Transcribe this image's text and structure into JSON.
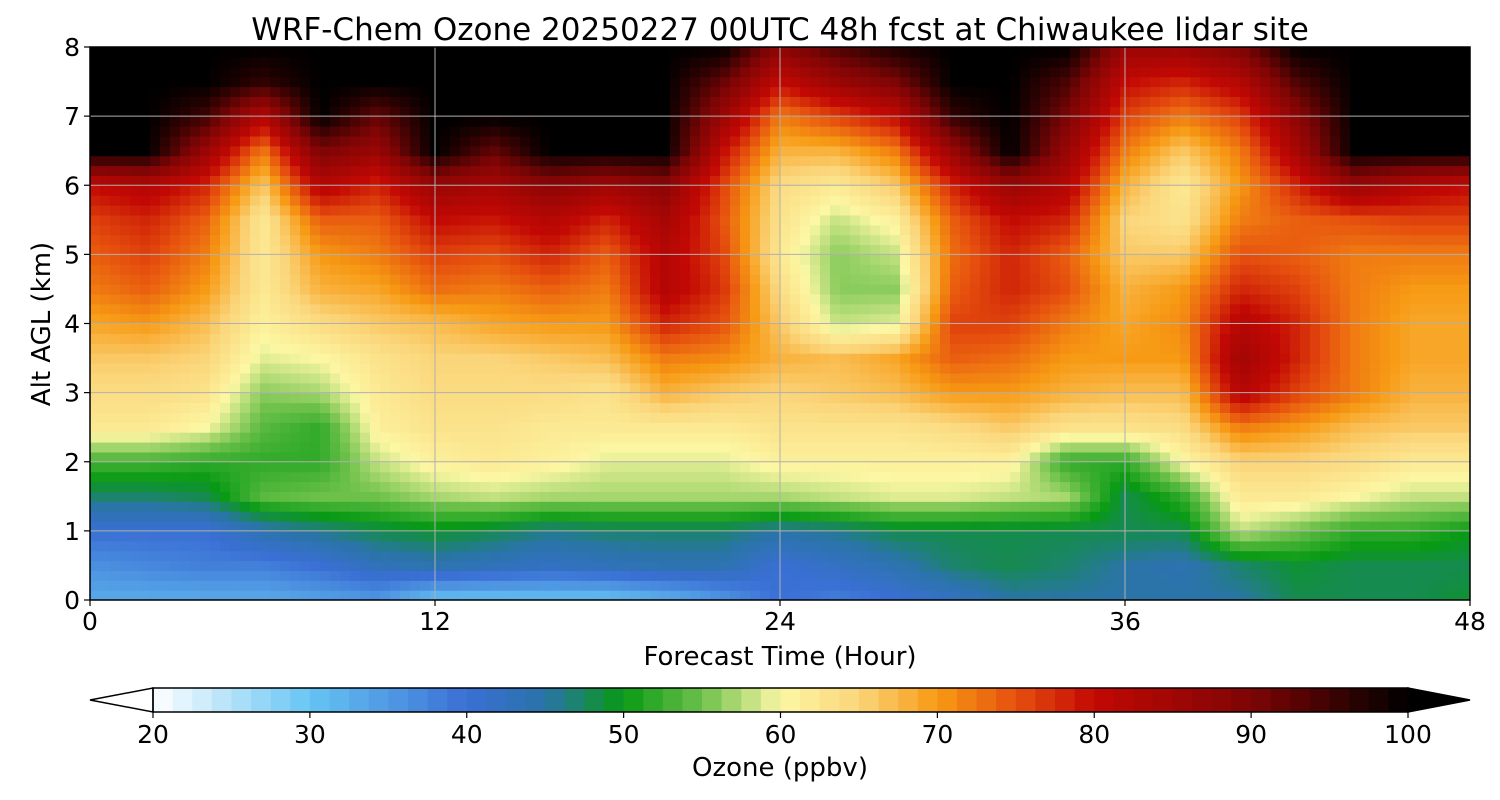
{
  "chart_data": {
    "type": "heatmap",
    "title": "WRF-Chem Ozone  20250227 00UTC 48h fcst at Chiwaukee lidar site",
    "xlabel": "Forecast Time (Hour)",
    "ylabel": "Alt AGL (km)",
    "xlim": [
      0,
      48
    ],
    "ylim": [
      0,
      8
    ],
    "xticks": [
      "0",
      "12",
      "24",
      "36",
      "48"
    ],
    "yticks": [
      "0",
      "1",
      "2",
      "3",
      "4",
      "5",
      "6",
      "7",
      "8"
    ],
    "grid": true,
    "x": [
      0,
      2,
      4,
      6,
      8,
      10,
      12,
      14,
      16,
      18,
      20,
      22,
      24,
      26,
      28,
      30,
      32,
      34,
      36,
      38,
      40,
      42,
      44,
      46,
      48
    ],
    "y": [
      0,
      0.5,
      1,
      1.5,
      2,
      2.5,
      3,
      3.5,
      4,
      4.5,
      5,
      5.5,
      6,
      6.5,
      7,
      7.5,
      8
    ],
    "z": [
      [
        33,
        33,
        33,
        33,
        34,
        35,
        30,
        30,
        30,
        30,
        32,
        35,
        40,
        38,
        40,
        42,
        45,
        45,
        45,
        45,
        45,
        48,
        48,
        48,
        49
      ],
      [
        36,
        37,
        38,
        38,
        40,
        43,
        44,
        43,
        42,
        43,
        44,
        44,
        40,
        42,
        44,
        47,
        48,
        47,
        45,
        44,
        47,
        49,
        48,
        48,
        48
      ],
      [
        40,
        40,
        40,
        44,
        46,
        48,
        49,
        48,
        46,
        47,
        47,
        47,
        45,
        46,
        48,
        48,
        48,
        48,
        48,
        48,
        58,
        55,
        52,
        52,
        50
      ],
      [
        47,
        47,
        48,
        54,
        55,
        55,
        57,
        58,
        57,
        57,
        57,
        57,
        57,
        58,
        59,
        59,
        58,
        57,
        48,
        52,
        62,
        62,
        60,
        58,
        58
      ],
      [
        53,
        53,
        52,
        52,
        52,
        58,
        61,
        62,
        61,
        59,
        59,
        59,
        61,
        61,
        61,
        61,
        61,
        52,
        52,
        60,
        65,
        65,
        64,
        62,
        62
      ],
      [
        62,
        62,
        60,
        54,
        52,
        61,
        63,
        63,
        62,
        62,
        62,
        62,
        63,
        63,
        63,
        64,
        66,
        63,
        63,
        64,
        72,
        70,
        67,
        66,
        66
      ],
      [
        64,
        64,
        63,
        56,
        57,
        62,
        64,
        64,
        64,
        63,
        68,
        66,
        65,
        66,
        67,
        70,
        70,
        68,
        67,
        67,
        82,
        76,
        72,
        68,
        68
      ],
      [
        66,
        66,
        65,
        59,
        60,
        63,
        65,
        65,
        66,
        67,
        72,
        71,
        68,
        67,
        69,
        74,
        73,
        70,
        70,
        70,
        85,
        78,
        72,
        69,
        69
      ],
      [
        69,
        70,
        67,
        61,
        64,
        66,
        67,
        69,
        70,
        70,
        78,
        75,
        66,
        58,
        59,
        76,
        76,
        72,
        69,
        71,
        82,
        78,
        72,
        69,
        69
      ],
      [
        72,
        74,
        70,
        62,
        68,
        69,
        73,
        72,
        74,
        72,
        82,
        77,
        64,
        56,
        56,
        74,
        78,
        75,
        68,
        70,
        78,
        76,
        72,
        70,
        70
      ],
      [
        74,
        76,
        72,
        62,
        70,
        72,
        76,
        75,
        78,
        74,
        82,
        76,
        62,
        56,
        58,
        73,
        78,
        74,
        66,
        66,
        75,
        74,
        72,
        72,
        72
      ],
      [
        76,
        78,
        74,
        62,
        74,
        74,
        80,
        79,
        82,
        78,
        84,
        75,
        63,
        58,
        61,
        74,
        80,
        78,
        65,
        63,
        72,
        74,
        75,
        76,
        76
      ],
      [
        80,
        82,
        78,
        66,
        82,
        78,
        86,
        84,
        88,
        85,
        88,
        76,
        64,
        62,
        66,
        78,
        86,
        82,
        68,
        62,
        70,
        78,
        86,
        82,
        80
      ],
      [
        100,
        100,
        86,
        72,
        90,
        86,
        100,
        92,
        100,
        100,
        100,
        80,
        68,
        68,
        72,
        86,
        100,
        86,
        72,
        66,
        72,
        84,
        100,
        100,
        100
      ],
      [
        100,
        100,
        95,
        82,
        100,
        92,
        100,
        100,
        100,
        100,
        100,
        86,
        72,
        76,
        80,
        96,
        100,
        90,
        76,
        72,
        76,
        88,
        100,
        100,
        100
      ],
      [
        100,
        100,
        100,
        96,
        100,
        100,
        100,
        100,
        100,
        100,
        100,
        92,
        80,
        86,
        90,
        100,
        100,
        94,
        80,
        78,
        82,
        94,
        100,
        100,
        100
      ],
      [
        100,
        100,
        100,
        100,
        100,
        100,
        100,
        100,
        100,
        100,
        100,
        100,
        88,
        94,
        98,
        100,
        100,
        100,
        86,
        86,
        90,
        100,
        100,
        100,
        100
      ]
    ],
    "colorbar": {
      "label": "Ozone  (ppbv)",
      "min": 20,
      "max": 100,
      "ticks": [
        "20",
        "30",
        "40",
        "50",
        "60",
        "70",
        "80",
        "90",
        "100"
      ],
      "extend": "both"
    }
  },
  "colormap": [
    [
      20,
      "#ffffff"
    ],
    [
      30,
      "#66c4f3"
    ],
    [
      40,
      "#3a6fd4"
    ],
    [
      45,
      "#2a74a8"
    ],
    [
      50,
      "#089a14"
    ],
    [
      55,
      "#6dc14b"
    ],
    [
      60,
      "#fcf7a4"
    ],
    [
      65,
      "#fbd57a"
    ],
    [
      70,
      "#f79a14"
    ],
    [
      75,
      "#e6500e"
    ],
    [
      80,
      "#c20804"
    ],
    [
      90,
      "#7e0505"
    ],
    [
      100,
      "#000000"
    ]
  ]
}
